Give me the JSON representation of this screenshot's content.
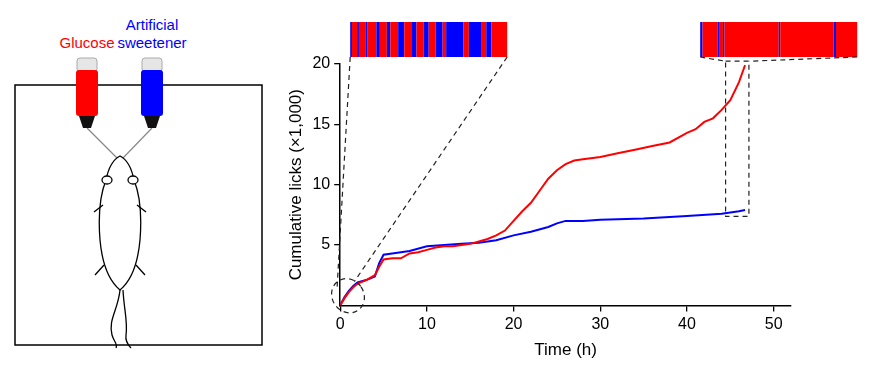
{
  "chart_data": {
    "type": "line",
    "x_label": "Time (h)",
    "y_label": "Cumulative licks (×1,000)",
    "xlim": [
      0,
      52
    ],
    "xticks": [
      0,
      10,
      20,
      30,
      40,
      50
    ],
    "ylim": [
      0,
      20
    ],
    "yticks": [
      5,
      10,
      15,
      20
    ],
    "grid": false,
    "series": [
      {
        "name": "Glucose",
        "color": "#ff0000",
        "x": [
          0,
          0.5,
          1,
          1.5,
          2,
          3,
          4,
          4.5,
          5,
          6,
          7,
          8,
          9,
          10,
          11,
          12,
          13,
          14,
          15,
          16,
          17,
          18,
          19,
          20,
          21,
          22,
          23,
          24,
          25,
          26,
          27,
          28,
          30,
          32,
          34,
          36,
          38,
          40,
          41,
          42,
          43,
          44,
          45,
          46,
          46.5,
          46.7
        ],
        "values": [
          0,
          0.6,
          1.1,
          1.5,
          1.8,
          2.1,
          2.5,
          3.2,
          3.8,
          3.9,
          3.9,
          4.3,
          4.4,
          4.6,
          4.8,
          4.9,
          4.9,
          5.0,
          5.1,
          5.3,
          5.5,
          5.8,
          6.2,
          7.0,
          7.8,
          8.5,
          9.5,
          10.5,
          11.2,
          11.7,
          12.0,
          12.1,
          12.3,
          12.6,
          12.9,
          13.2,
          13.5,
          14.3,
          14.6,
          15.2,
          15.5,
          16.2,
          17.0,
          18.5,
          19.5,
          19.9
        ]
      },
      {
        "name": "Artificial sweetener",
        "color": "#0000ff",
        "x": [
          0,
          0.5,
          1,
          1.5,
          2,
          3,
          4,
          4.5,
          5,
          6,
          8,
          10,
          12,
          14,
          16,
          18,
          20,
          22,
          24,
          25,
          26,
          28,
          30,
          35,
          40,
          44,
          45,
          46,
          46.7
        ],
        "values": [
          0,
          0.7,
          1.2,
          1.6,
          1.9,
          2.1,
          2.4,
          3.5,
          4.2,
          4.3,
          4.5,
          4.9,
          5.0,
          5.1,
          5.2,
          5.4,
          5.8,
          6.1,
          6.5,
          6.8,
          7.0,
          7.0,
          7.1,
          7.2,
          7.4,
          7.6,
          7.7,
          7.8,
          7.9
        ]
      }
    ],
    "insets": [
      {
        "range": [
          0,
          1.8
        ],
        "segments": [
          {
            "series": "Artificial sweetener",
            "start": 0,
            "end": 0.02
          },
          {
            "series": "Glucose",
            "start": 0.02,
            "end": 0.08
          },
          {
            "series": "Artificial sweetener",
            "start": 0.08,
            "end": 0.1
          },
          {
            "series": "Glucose",
            "start": 0.1,
            "end": 0.18
          },
          {
            "series": "Artificial sweetener",
            "start": 0.18,
            "end": 0.2
          },
          {
            "series": "Glucose",
            "start": 0.2,
            "end": 0.3
          },
          {
            "series": "Artificial sweetener",
            "start": 0.3,
            "end": 0.34
          },
          {
            "series": "Glucose",
            "start": 0.34,
            "end": 0.42
          },
          {
            "series": "Artificial sweetener",
            "start": 0.42,
            "end": 0.46
          },
          {
            "series": "Glucose",
            "start": 0.46,
            "end": 0.55
          },
          {
            "series": "Artificial sweetener",
            "start": 0.55,
            "end": 0.62
          },
          {
            "series": "Glucose",
            "start": 0.62,
            "end": 0.7
          },
          {
            "series": "Artificial sweetener",
            "start": 0.7,
            "end": 0.76
          },
          {
            "series": "Glucose",
            "start": 0.76,
            "end": 0.84
          },
          {
            "series": "Artificial sweetener",
            "start": 0.84,
            "end": 0.9
          },
          {
            "series": "Glucose",
            "start": 0.9,
            "end": 0.98
          },
          {
            "series": "Artificial sweetener",
            "start": 0.98,
            "end": 1.06
          },
          {
            "series": "Glucose",
            "start": 1.06,
            "end": 1.1
          },
          {
            "series": "Artificial sweetener",
            "start": 1.1,
            "end": 1.3
          },
          {
            "series": "Glucose",
            "start": 1.3,
            "end": 1.36
          },
          {
            "series": "Artificial sweetener",
            "start": 1.36,
            "end": 1.5
          },
          {
            "series": "Glucose",
            "start": 1.5,
            "end": 1.56
          },
          {
            "series": "Artificial sweetener",
            "start": 1.56,
            "end": 1.62
          },
          {
            "series": "Glucose",
            "start": 1.62,
            "end": 1.8
          }
        ]
      },
      {
        "range": [
          44.8,
          46.8
        ],
        "segments": [
          {
            "series": "Artificial sweetener",
            "start": 44.8,
            "end": 44.83
          },
          {
            "series": "Glucose",
            "start": 44.83,
            "end": 45.02
          },
          {
            "series": "Artificial sweetener",
            "start": 45.02,
            "end": 45.04
          },
          {
            "series": "Glucose",
            "start": 45.04,
            "end": 45.09
          },
          {
            "series": "Artificial sweetener",
            "start": 45.09,
            "end": 45.11
          },
          {
            "series": "Glucose",
            "start": 45.11,
            "end": 45.8
          },
          {
            "series": "Artificial sweetener",
            "start": 45.8,
            "end": 45.82
          },
          {
            "series": "Glucose",
            "start": 45.82,
            "end": 46.5
          },
          {
            "series": "Artificial sweetener",
            "start": 46.5,
            "end": 46.53
          },
          {
            "series": "Glucose",
            "start": 46.53,
            "end": 46.8
          }
        ]
      }
    ]
  }
}
